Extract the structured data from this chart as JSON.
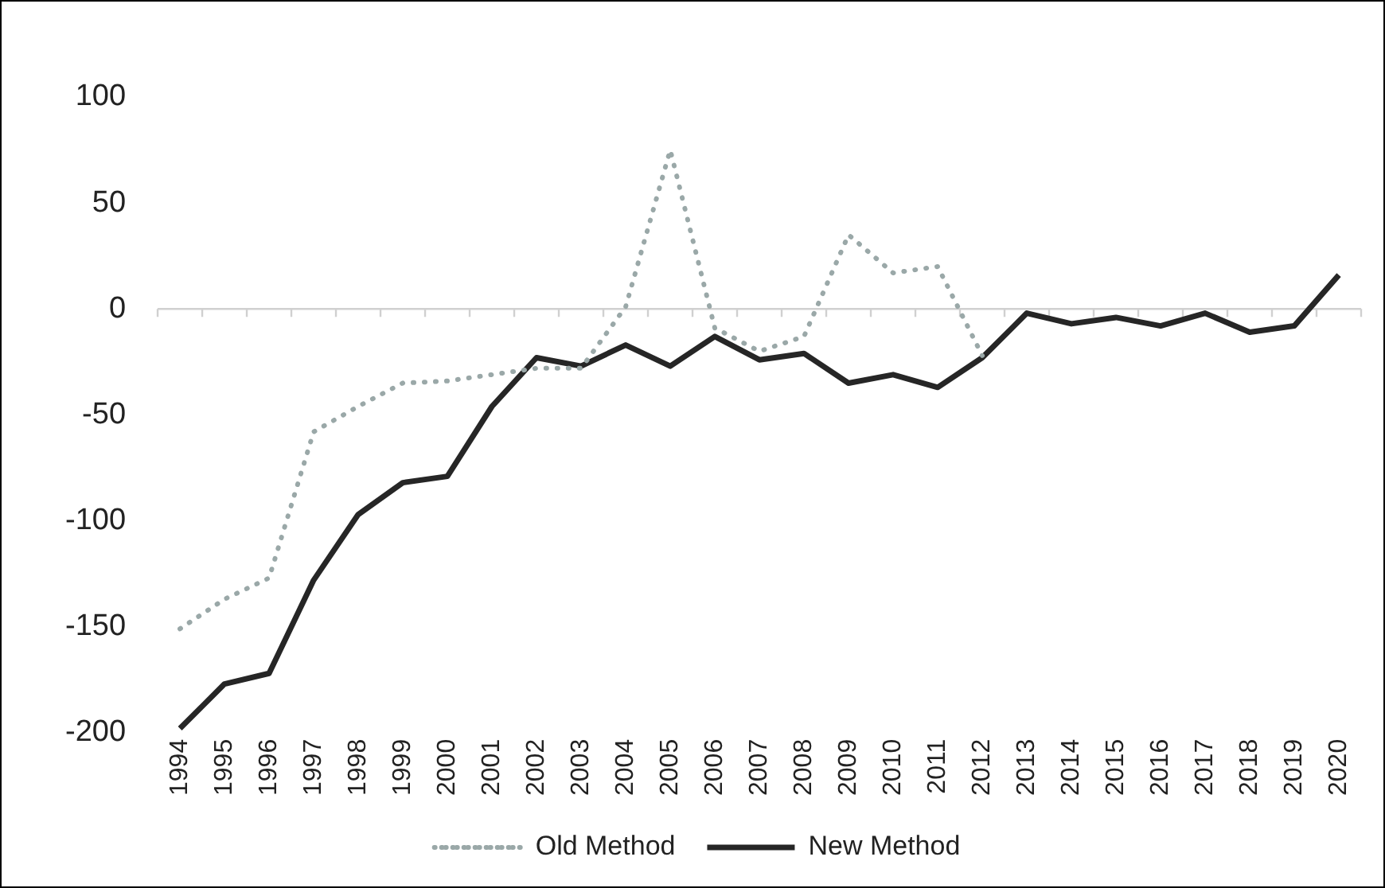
{
  "chart_data": {
    "type": "line",
    "categories": [
      "1994",
      "1995",
      "1996",
      "1997",
      "1998",
      "1999",
      "2000",
      "2001",
      "2002",
      "2003",
      "2004",
      "2005",
      "2006",
      "2007",
      "2008",
      "2009",
      "2010",
      "2011",
      "2012",
      "2013",
      "2014",
      "2015",
      "2016",
      "2017",
      "2018",
      "2019",
      "2020"
    ],
    "series": [
      {
        "name": "Old Method",
        "color": "#9aa8a8",
        "line_style": "dotted",
        "values": [
          -151,
          -137,
          -127,
          -58,
          -46,
          -35,
          -34,
          -31,
          -28,
          -28,
          1,
          75,
          -9,
          -20,
          -13,
          35,
          17,
          20,
          -22,
          null,
          null,
          null,
          null,
          null,
          null,
          null,
          null
        ]
      },
      {
        "name": "New Method",
        "color": "#262626",
        "line_style": "solid",
        "values": [
          -198,
          -177,
          -172,
          -128,
          -97,
          -82,
          -79,
          -46,
          -23,
          -27,
          -17,
          -27,
          -13,
          -24,
          -21,
          -35,
          -31,
          -37,
          -23,
          -2,
          -7,
          -4,
          -8,
          -2,
          -11,
          -8,
          16
        ]
      }
    ],
    "ylim": [
      -200,
      100
    ],
    "yticks": [
      -200,
      -150,
      -100,
      -50,
      0,
      50,
      100
    ],
    "ref_lines": [
      {
        "axis": "y",
        "value": 0,
        "color": "#d0d0d0"
      }
    ],
    "grid": false,
    "legend": "bottom",
    "marker": "none"
  }
}
